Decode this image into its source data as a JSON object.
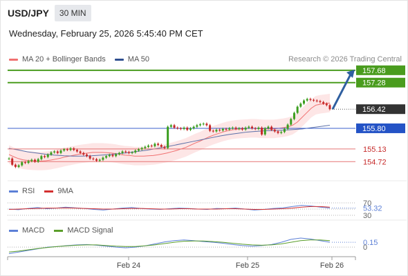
{
  "header": {
    "symbol": "USD/JPY",
    "timeframe": "30 MIN",
    "datetime": "Wednesday, February 25, 2026 5:45:40 PM CET"
  },
  "legend": {
    "ma20": "MA 20 + Bollinger Bands",
    "ma50": "MA 50",
    "credit": "Research © 2026 Trading Central"
  },
  "rsi_legend": {
    "rsi": "RSI",
    "ma": "9MA"
  },
  "macd_legend": {
    "macd": "MACD",
    "signal": "MACD Signal"
  },
  "colors": {
    "bullish": "#3a9e1e",
    "bearish": "#c62828",
    "ma20": "#f07070",
    "bollinger": "#fde0e0",
    "ma50": "#5a6fa8",
    "pivot": "#3a5fcd",
    "support": "#e57373",
    "target": "#4a9c1e",
    "current": "#333333",
    "arrow": "#2f5fa0",
    "rsi": "#5b7fd6",
    "rsi_ma": "#d32f2f",
    "macd": "#5b7fd6",
    "macd_signal": "#5a9e2a"
  },
  "chart_data": [
    {
      "type": "line",
      "title": "USD/JPY 30 MIN",
      "x_tick_labels": [
        "Feb 24",
        "Feb 25",
        "Feb 26"
      ],
      "y_range": [
        154.1,
        157.9
      ],
      "y_tick_labels": [],
      "candle_closes": [
        154.82,
        154.62,
        154.55,
        154.6,
        154.7,
        154.68,
        154.74,
        154.78,
        154.72,
        154.8,
        154.9,
        154.87,
        154.95,
        155.02,
        155.05,
        155.0,
        155.08,
        155.12,
        155.1,
        155.15,
        155.1,
        155.05,
        155.0,
        154.95,
        154.9,
        154.82,
        154.8,
        154.75,
        154.78,
        154.85,
        154.9,
        154.94,
        154.9,
        154.96,
        155.0,
        155.05,
        155.03,
        155.0,
        155.02,
        155.08,
        155.12,
        155.16,
        155.2,
        155.24,
        155.22,
        155.3,
        155.26,
        155.2,
        155.16,
        155.85,
        155.9,
        155.82,
        155.8,
        155.78,
        155.82,
        155.75,
        155.8,
        155.85,
        155.9,
        155.93,
        155.95,
        155.9,
        155.72,
        155.7,
        155.75,
        155.73,
        155.78,
        155.76,
        155.8,
        155.82,
        155.78,
        155.8,
        155.76,
        155.82,
        155.85,
        155.8,
        155.78,
        155.82,
        155.6,
        155.8,
        155.85,
        155.75,
        155.7,
        155.65,
        155.68,
        155.78,
        155.92,
        156.1,
        156.3,
        156.5,
        156.6,
        156.7,
        156.75,
        156.72,
        156.7,
        156.68,
        156.65,
        156.6,
        156.55,
        156.42
      ],
      "series": [
        {
          "name": "MA 20",
          "values": [
            154.95,
            154.88,
            154.82,
            154.78,
            154.76,
            154.75,
            154.74,
            154.74,
            154.75,
            154.77,
            154.8,
            154.83,
            154.87,
            154.9,
            154.93,
            154.96,
            154.98,
            155.0,
            155.02,
            155.02,
            155.02,
            155.01,
            155.0,
            154.98,
            154.95,
            154.93,
            154.92,
            154.9,
            154.9,
            154.9,
            154.91,
            154.92,
            154.94,
            154.97,
            155.0,
            155.04,
            155.08,
            155.13,
            155.18,
            155.25,
            155.32,
            155.38,
            155.45,
            155.52,
            155.58,
            155.63,
            155.68,
            155.72,
            155.75,
            155.77,
            155.78,
            155.79,
            155.8,
            155.8,
            155.79,
            155.78,
            155.78,
            155.78,
            155.8,
            155.82,
            155.85,
            155.9,
            156.0,
            156.15,
            156.3,
            156.45,
            156.55,
            156.58,
            156.6,
            156.62
          ]
        },
        {
          "name": "MA 50",
          "values": [
            155.15,
            155.1,
            155.04,
            155.0,
            154.96,
            154.93,
            154.91,
            154.9,
            154.9,
            154.91,
            154.93,
            154.95,
            154.98,
            155.01,
            155.05,
            155.09,
            155.14,
            155.19,
            155.25,
            155.31,
            155.37,
            155.43,
            155.49,
            155.55,
            155.6,
            155.64,
            155.68,
            155.7,
            155.72,
            155.73,
            155.74,
            155.76,
            155.78,
            155.82,
            155.86,
            155.9
          ]
        },
        {
          "name": "RSI",
          "values": [
            50,
            48,
            52,
            55,
            51,
            53,
            56,
            54,
            52,
            49,
            47,
            50,
            53,
            55,
            52,
            50,
            49,
            51,
            53,
            52,
            50,
            49,
            52,
            51,
            53,
            50,
            47,
            49,
            52,
            54,
            58,
            62,
            60,
            56,
            53.32
          ]
        },
        {
          "name": "9MA",
          "values": [
            49,
            50,
            51,
            52,
            53,
            53,
            54,
            53,
            52,
            51,
            50,
            50,
            51,
            52,
            52,
            51,
            50,
            50,
            51,
            51,
            50,
            50,
            50,
            51,
            51,
            50,
            49,
            49,
            50,
            51,
            53,
            56,
            58,
            58,
            56
          ]
        },
        {
          "name": "MACD",
          "values": [
            -0.2,
            -0.15,
            -0.1,
            -0.05,
            0.0,
            0.02,
            0.05,
            0.07,
            0.08,
            0.06,
            0.03,
            0.0,
            -0.02,
            0.0,
            0.04,
            0.1,
            0.16,
            0.2,
            0.22,
            0.2,
            0.17,
            0.15,
            0.12,
            0.08,
            0.05,
            0.03,
            0.05,
            0.08,
            0.15,
            0.24,
            0.28,
            0.25,
            0.2,
            0.15
          ]
        },
        {
          "name": "MACD Signal",
          "values": [
            -0.15,
            -0.12,
            -0.08,
            -0.04,
            -0.01,
            0.02,
            0.04,
            0.06,
            0.07,
            0.07,
            0.05,
            0.03,
            0.02,
            0.02,
            0.04,
            0.07,
            0.11,
            0.15,
            0.18,
            0.19,
            0.19,
            0.17,
            0.15,
            0.12,
            0.09,
            0.07,
            0.06,
            0.07,
            0.1,
            0.15,
            0.2,
            0.22,
            0.22,
            0.2
          ]
        }
      ],
      "levels": [
        {
          "value": 157.68,
          "label": "157.68",
          "kind": "target"
        },
        {
          "value": 157.28,
          "label": "157.28",
          "kind": "target"
        },
        {
          "value": 156.42,
          "label": "156.42",
          "kind": "current"
        },
        {
          "value": 155.8,
          "label": "155.80",
          "kind": "pivot"
        },
        {
          "value": 155.13,
          "label": "155.13",
          "kind": "support"
        },
        {
          "value": 154.72,
          "label": "154.72",
          "kind": "support"
        }
      ],
      "rsi_axis_labels": [
        "70",
        "53.32",
        "30"
      ],
      "macd_axis_labels": [
        "0.15",
        "0"
      ]
    }
  ]
}
